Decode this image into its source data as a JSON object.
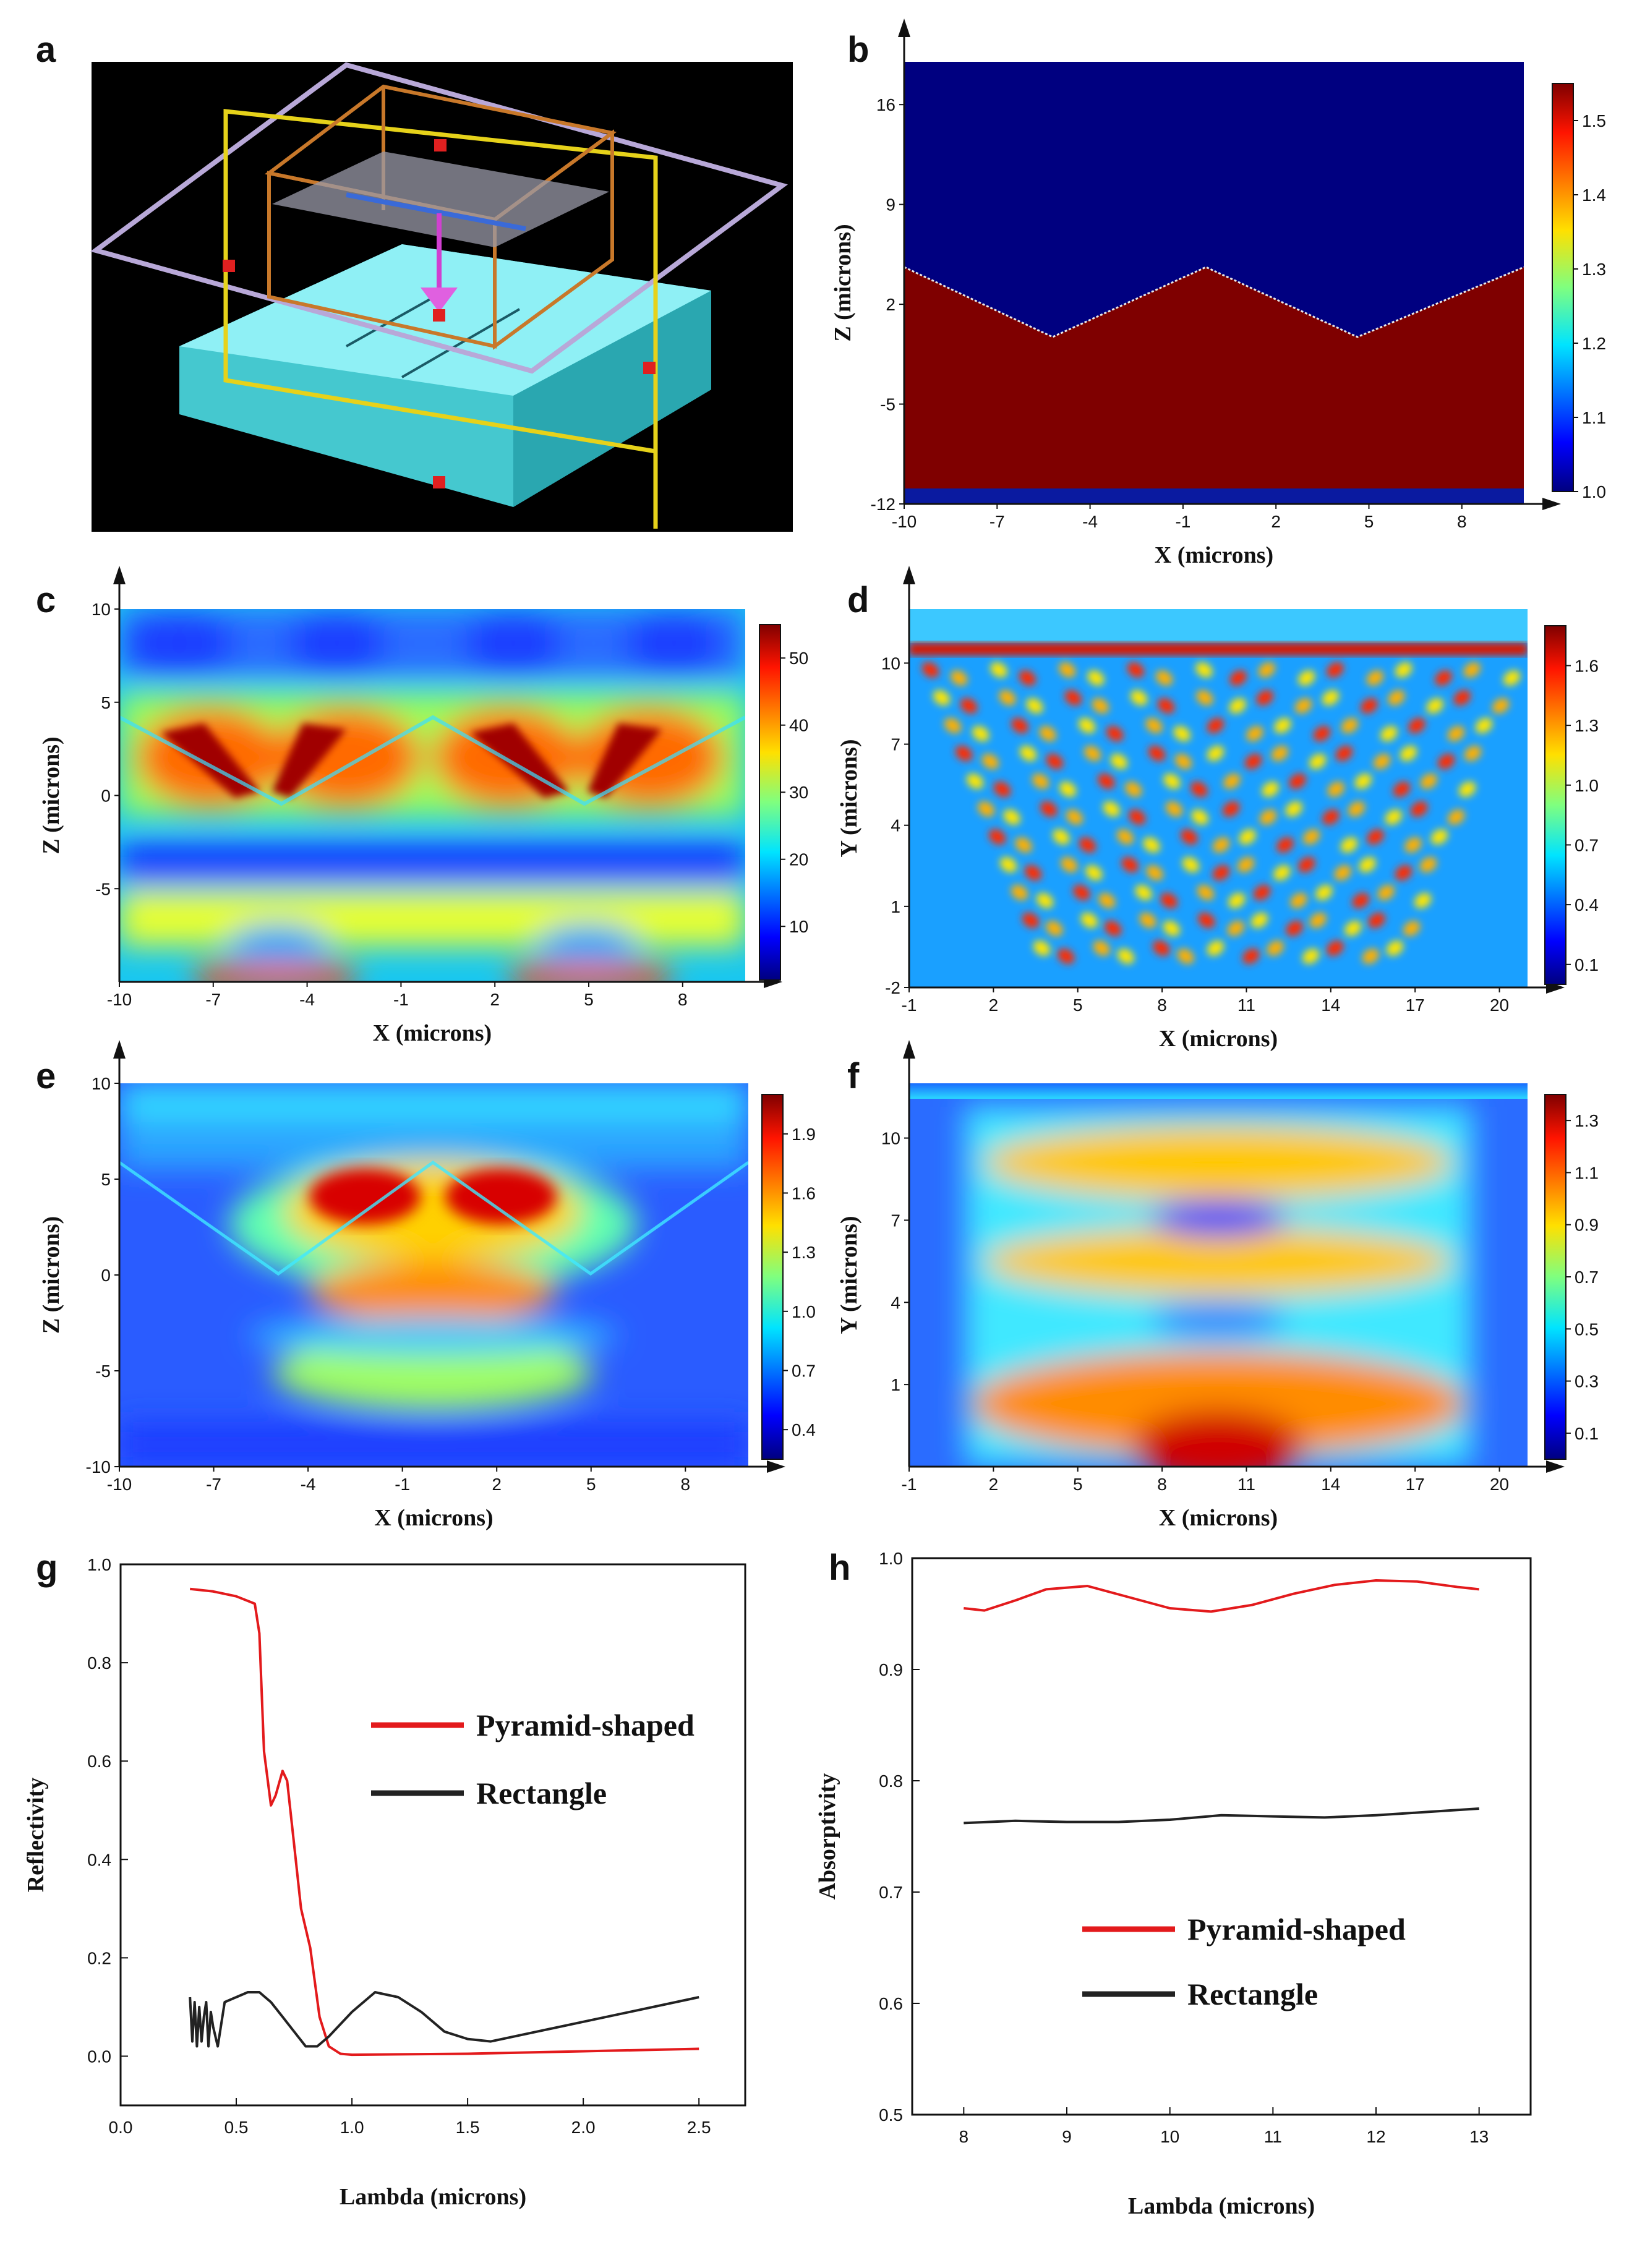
{
  "panels": [
    "a",
    "b",
    "c",
    "d",
    "e",
    "f",
    "g",
    "h"
  ],
  "colors": {
    "jet_low": "#00007f",
    "jet_high": "#7f0000",
    "pyramid": "#e31a1c",
    "rectangle": "#222222",
    "slab": "#66e0e8",
    "frame_yellow": "#e6d21a",
    "frame_orange": "#c8782a"
  },
  "chart_data": [
    {
      "panel": "a",
      "type": "3d-schematic",
      "description_label": "3D simulation setup"
    },
    {
      "panel": "b",
      "type": "heatmap",
      "title": "",
      "xlabel": "X (microns)",
      "ylabel": "Z (microns)",
      "xlim": [
        -10,
        10
      ],
      "ylim": [
        -12,
        19
      ],
      "x_ticks": [
        "-10",
        "-7",
        "-4",
        "-1",
        "2",
        "5",
        "8"
      ],
      "y_ticks": [
        "-12",
        "-5",
        "2",
        "9",
        "16"
      ],
      "colorbar": {
        "min": 1.0,
        "max": 1.55,
        "ticks": [
          "1.0",
          "1.1",
          "1.2",
          "1.3",
          "1.4",
          "1.5"
        ]
      },
      "interface_profile": {
        "x": [
          -10,
          -5,
          0,
          5,
          10
        ],
        "z": [
          5,
          0,
          5,
          0,
          5
        ]
      }
    },
    {
      "panel": "c",
      "type": "heatmap",
      "xlabel": "X (microns)",
      "ylabel": "Z (microns)",
      "xlim": [
        -10,
        10
      ],
      "ylim": [
        -10,
        10
      ],
      "x_ticks": [
        "-10",
        "-7",
        "-4",
        "-1",
        "2",
        "5",
        "8"
      ],
      "y_ticks": [
        "-5",
        "0",
        "5",
        "10"
      ],
      "colorbar": {
        "min": 2,
        "max": 55,
        "ticks": [
          "10",
          "20",
          "30",
          "40",
          "50"
        ]
      }
    },
    {
      "panel": "d",
      "type": "heatmap",
      "xlabel": "X (microns)",
      "ylabel": "Y (microns)",
      "xlim": [
        -1,
        21
      ],
      "ylim": [
        -2,
        12
      ],
      "x_ticks": [
        "-1",
        "2",
        "5",
        "8",
        "11",
        "14",
        "17",
        "20"
      ],
      "y_ticks": [
        "-2",
        "1",
        "4",
        "7",
        "10"
      ],
      "colorbar": {
        "min": 0.0,
        "max": 1.8,
        "ticks": [
          "0.1",
          "0.4",
          "0.7",
          "1.0",
          "1.3",
          "1.6"
        ]
      }
    },
    {
      "panel": "e",
      "type": "heatmap",
      "xlabel": "X (microns)",
      "ylabel": "Z (microns)",
      "xlim": [
        -10,
        10
      ],
      "ylim": [
        -10,
        10
      ],
      "x_ticks": [
        "-10",
        "-7",
        "-4",
        "-1",
        "2",
        "5",
        "8"
      ],
      "y_ticks": [
        "-10",
        "-5",
        "0",
        "5",
        "10"
      ],
      "colorbar": {
        "min": 0.25,
        "max": 2.1,
        "ticks": [
          "0.4",
          "0.7",
          "1.0",
          "1.3",
          "1.6",
          "1.9"
        ]
      }
    },
    {
      "panel": "f",
      "type": "heatmap",
      "xlabel": "X (microns)",
      "ylabel": "Y (microns)",
      "xlim": [
        -1,
        21
      ],
      "ylim": [
        -2,
        12
      ],
      "x_ticks": [
        "-1",
        "2",
        "5",
        "8",
        "11",
        "14",
        "17",
        "20"
      ],
      "y_ticks": [
        "1",
        "4",
        "7",
        "10"
      ],
      "colorbar": {
        "min": 0.0,
        "max": 1.4,
        "ticks": [
          "0.1",
          "0.3",
          "0.5",
          "0.7",
          "0.9",
          "1.1",
          "1.3"
        ]
      }
    },
    {
      "panel": "g",
      "type": "line",
      "xlabel": "Lambda (microns)",
      "ylabel": "Reflectivity",
      "xlim": [
        0,
        2.7
      ],
      "ylim": [
        -0.1,
        1.0
      ],
      "x_ticks": [
        0.0,
        0.5,
        1.0,
        1.5,
        2.0,
        2.5
      ],
      "x_tick_labels": [
        "0.0",
        "0.5",
        "1.0",
        "1.5",
        "2.0",
        "2.5"
      ],
      "y_ticks": [
        0.0,
        0.2,
        0.4,
        0.6,
        0.8,
        1.0
      ],
      "y_tick_labels": [
        "0.0",
        "0.2",
        "0.4",
        "0.6",
        "0.8",
        "1.0"
      ],
      "legend_position": "center-right",
      "series": [
        {
          "name": "Pyramid-shaped",
          "color": "#e31a1c",
          "x": [
            0.3,
            0.4,
            0.5,
            0.58,
            0.6,
            0.62,
            0.65,
            0.67,
            0.7,
            0.72,
            0.75,
            0.78,
            0.82,
            0.86,
            0.9,
            0.95,
            1.0,
            1.5,
            2.0,
            2.5
          ],
          "y": [
            0.95,
            0.945,
            0.935,
            0.92,
            0.86,
            0.62,
            0.51,
            0.53,
            0.58,
            0.56,
            0.43,
            0.3,
            0.22,
            0.08,
            0.02,
            0.005,
            0.003,
            0.005,
            0.01,
            0.015
          ]
        },
        {
          "name": "Rectangle",
          "color": "#222222",
          "x": [
            0.3,
            0.31,
            0.32,
            0.33,
            0.34,
            0.35,
            0.36,
            0.37,
            0.38,
            0.39,
            0.4,
            0.42,
            0.45,
            0.5,
            0.55,
            0.6,
            0.65,
            0.7,
            0.75,
            0.8,
            0.85,
            0.9,
            1.0,
            1.1,
            1.2,
            1.3,
            1.4,
            1.5,
            1.6,
            1.8,
            2.0,
            2.2,
            2.5
          ],
          "y": [
            0.12,
            0.03,
            0.11,
            0.02,
            0.1,
            0.03,
            0.08,
            0.11,
            0.02,
            0.09,
            0.06,
            0.02,
            0.11,
            0.12,
            0.13,
            0.13,
            0.11,
            0.08,
            0.05,
            0.02,
            0.02,
            0.04,
            0.09,
            0.13,
            0.12,
            0.09,
            0.05,
            0.035,
            0.03,
            0.05,
            0.07,
            0.09,
            0.12
          ]
        }
      ]
    },
    {
      "panel": "h",
      "type": "line",
      "xlabel": "Lambda (microns)",
      "ylabel": "Absorptivity",
      "xlim": [
        7.5,
        13.5
      ],
      "ylim": [
        0.5,
        1.0
      ],
      "x_ticks": [
        8,
        9,
        10,
        11,
        12,
        13
      ],
      "x_tick_labels": [
        "8",
        "9",
        "10",
        "11",
        "12",
        "13"
      ],
      "y_ticks": [
        0.5,
        0.6,
        0.7,
        0.8,
        0.9,
        1.0
      ],
      "y_tick_labels": [
        "0.5",
        "0.6",
        "0.7",
        "0.8",
        "0.9",
        "1.0"
      ],
      "legend_position": "lower-center",
      "series": [
        {
          "name": "Pyramid-shaped",
          "color": "#e31a1c",
          "x": [
            8.0,
            8.2,
            8.5,
            8.8,
            9.2,
            9.6,
            10.0,
            10.4,
            10.8,
            11.2,
            11.6,
            12.0,
            12.4,
            12.8,
            13.0
          ],
          "y": [
            0.955,
            0.953,
            0.962,
            0.972,
            0.975,
            0.965,
            0.955,
            0.952,
            0.958,
            0.968,
            0.976,
            0.98,
            0.979,
            0.974,
            0.972
          ]
        },
        {
          "name": "Rectangle",
          "color": "#222222",
          "x": [
            8.0,
            8.5,
            9.0,
            9.5,
            10.0,
            10.5,
            11.0,
            11.5,
            12.0,
            12.5,
            13.0
          ],
          "y": [
            0.762,
            0.764,
            0.763,
            0.763,
            0.765,
            0.769,
            0.768,
            0.767,
            0.769,
            0.772,
            0.775
          ]
        }
      ]
    }
  ]
}
